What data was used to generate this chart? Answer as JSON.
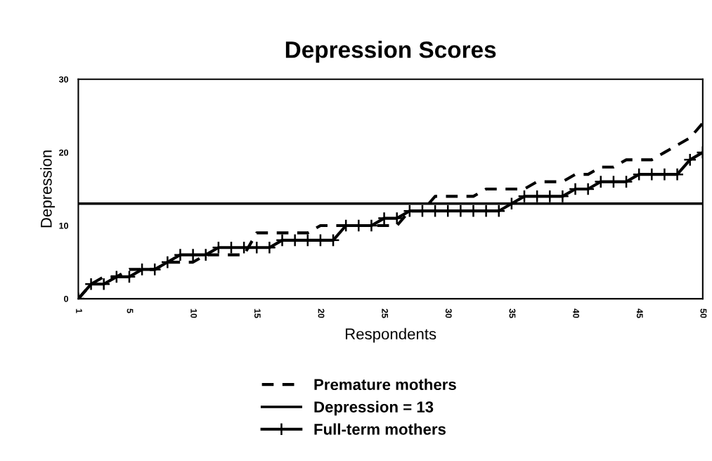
{
  "chart_data": {
    "type": "line",
    "title": "Depression Scores",
    "xlabel": "Respondents",
    "ylabel": "Depression",
    "x": [
      1,
      2,
      3,
      4,
      5,
      6,
      7,
      8,
      9,
      10,
      11,
      12,
      13,
      14,
      15,
      16,
      17,
      18,
      19,
      20,
      21,
      22,
      23,
      24,
      25,
      26,
      27,
      28,
      29,
      30,
      31,
      32,
      33,
      34,
      35,
      36,
      37,
      38,
      39,
      40,
      41,
      42,
      43,
      44,
      45,
      46,
      47,
      48,
      49,
      50
    ],
    "series": [
      {
        "name": "Premature mothers",
        "color": "#000000",
        "line_style": "dashed",
        "marker": "none",
        "values": [
          0,
          2,
          3,
          3,
          4,
          4,
          4,
          5,
          5,
          5,
          6,
          6,
          6,
          6,
          9,
          9,
          9,
          9,
          9,
          10,
          10,
          10,
          10,
          10,
          10,
          10,
          12,
          12,
          14,
          14,
          14,
          14,
          15,
          15,
          15,
          15,
          16,
          16,
          16,
          17,
          17,
          18,
          18,
          19,
          19,
          19,
          20,
          21,
          22,
          24
        ]
      },
      {
        "name": "Full-term mothers",
        "color": "#000000",
        "line_style": "solid",
        "marker": "cross",
        "values": [
          0,
          2,
          2,
          3,
          3,
          4,
          4,
          5,
          6,
          6,
          6,
          7,
          7,
          7,
          7,
          7,
          8,
          8,
          8,
          8,
          8,
          10,
          10,
          10,
          11,
          11,
          12,
          12,
          12,
          12,
          12,
          12,
          12,
          12,
          13,
          14,
          14,
          14,
          14,
          15,
          15,
          16,
          16,
          16,
          17,
          17,
          17,
          17,
          19,
          20
        ]
      }
    ],
    "ref_lines": [
      {
        "axis": "y",
        "value": 13,
        "label": "Depression = 13",
        "color": "#000000",
        "line_style": "solid"
      }
    ],
    "xlim": [
      1,
      50
    ],
    "xticks": [
      1,
      5,
      10,
      15,
      20,
      25,
      30,
      35,
      40,
      45,
      50
    ],
    "ylim": [
      0,
      30
    ],
    "yticks": [
      0,
      10,
      20,
      30
    ],
    "grid": false,
    "legend": "bottom"
  }
}
